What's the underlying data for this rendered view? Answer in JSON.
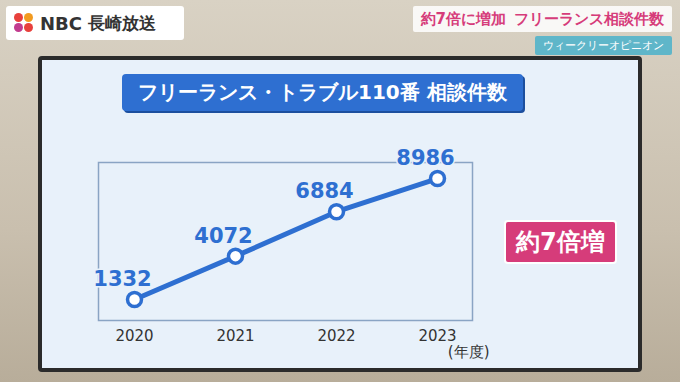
{
  "header": {
    "logo": [
      "NBC",
      "長崎放送"
    ],
    "headline": [
      "約7倍に増加",
      "フリーランス相談件数"
    ],
    "corner": "ウィークリーオピニオン"
  },
  "chart_data": {
    "type": "line",
    "title": "フリーランス・トラブル110番 相談件数",
    "categories": [
      "2020",
      "2021",
      "2022",
      "2023"
    ],
    "values": [
      1332,
      4072,
      6884,
      8986
    ],
    "x_label": "(年度)",
    "annotation": "約7倍増",
    "color": "#2e6fd1",
    "marker": "circle",
    "ylim": [
      0,
      10000
    ],
    "data_labels": true,
    "tick_labels": "x",
    "grid": false
  }
}
